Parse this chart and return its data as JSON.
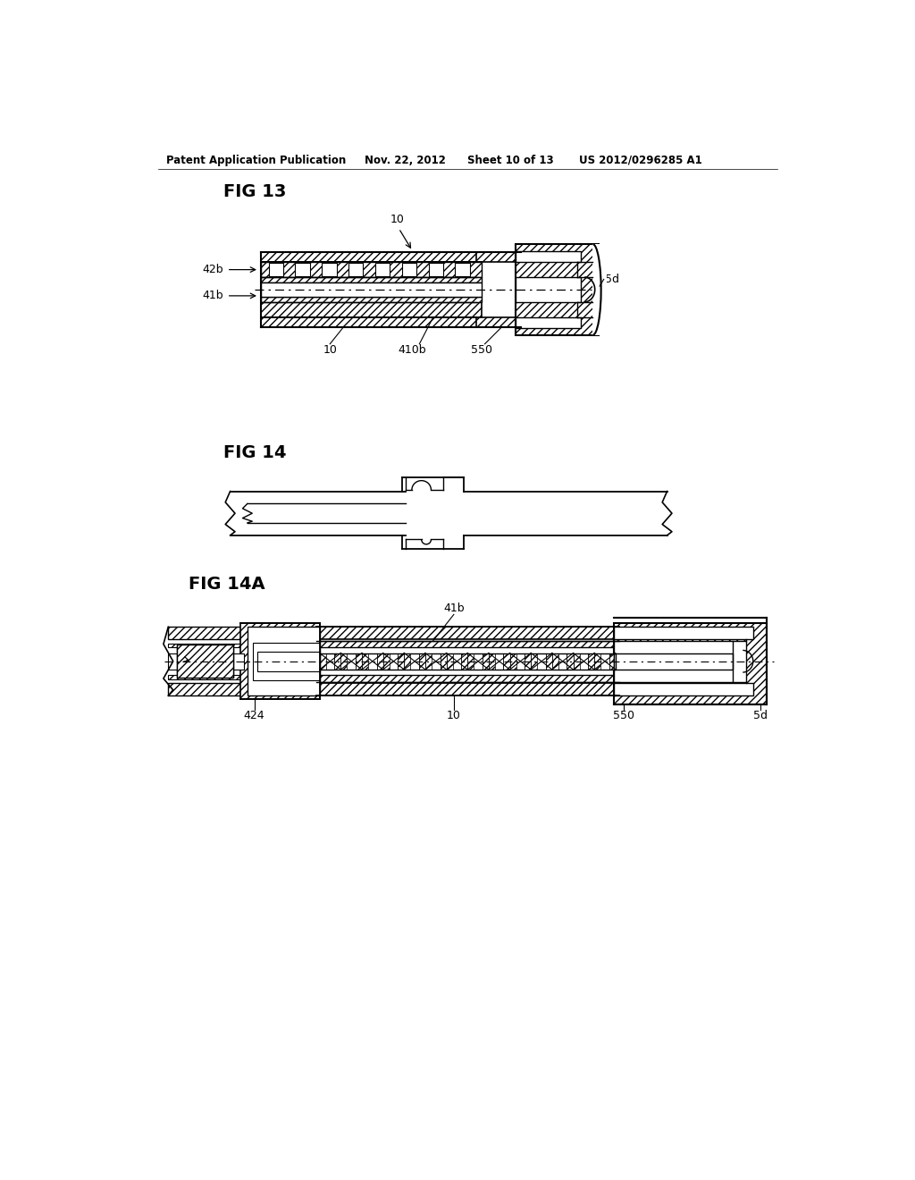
{
  "bg_color": "#ffffff",
  "header_text": "Patent Application Publication",
  "header_date": "Nov. 22, 2012",
  "header_sheet": "Sheet 10 of 13",
  "header_patent": "US 2012/0296285 A1",
  "fig13_label": "FIG 13",
  "fig14_label": "FIG 14",
  "fig14a_label": "FIG 14A",
  "line_color": "#000000"
}
